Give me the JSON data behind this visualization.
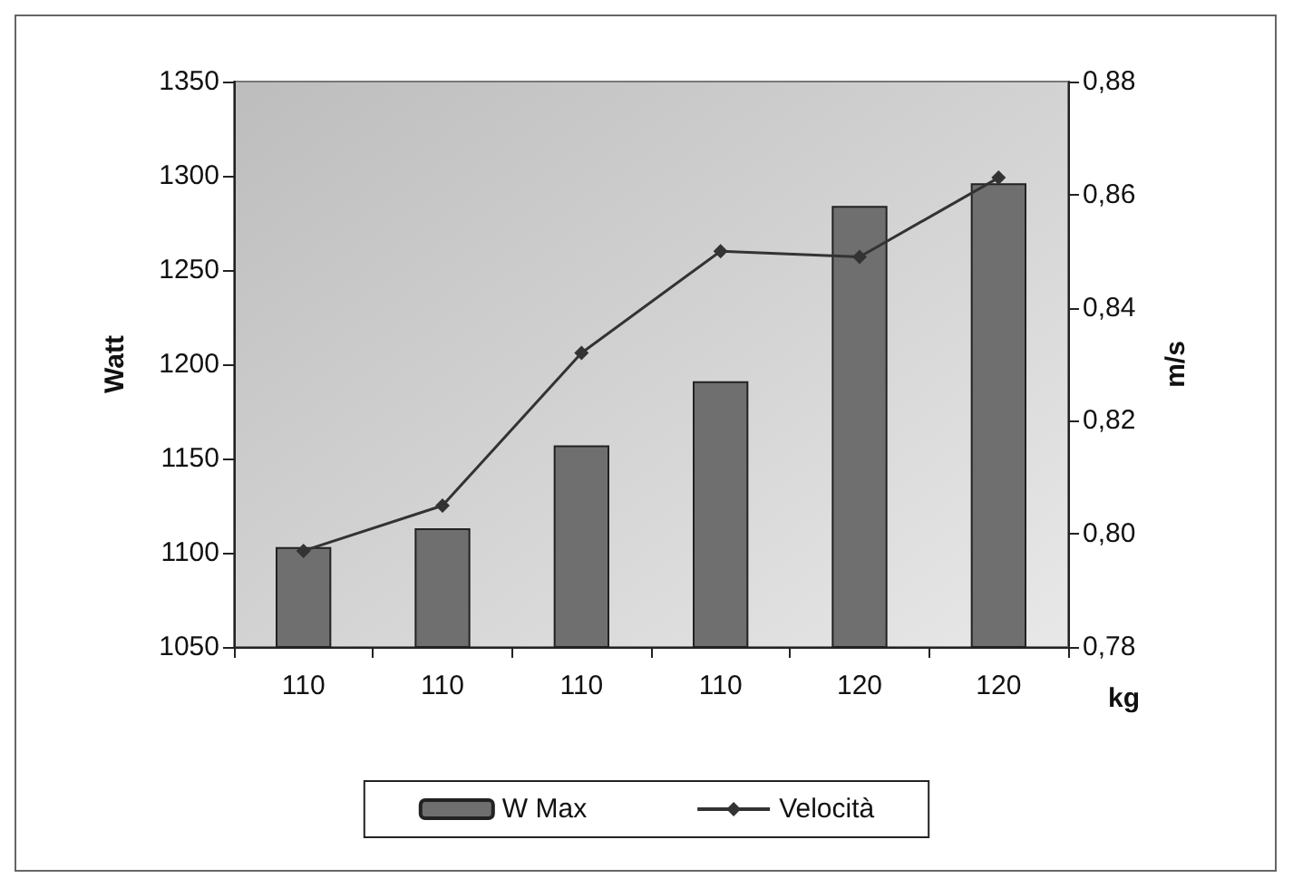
{
  "chart_data": {
    "type": "bar",
    "xlabel": "kg",
    "ylabel": "Watt",
    "y2label": "m/s",
    "categories": [
      "110",
      "110",
      "110",
      "110",
      "120",
      "120"
    ],
    "series": [
      {
        "name": "W Max",
        "color": "#6f6f6f",
        "values": [
          1103,
          1113,
          1157,
          1191,
          1284,
          1296
        ]
      },
      {
        "name": "Velocità",
        "type": "line",
        "axis": "y2",
        "color": "#333333",
        "marker": "diamond",
        "values": [
          0.797,
          0.805,
          0.832,
          0.85,
          0.849,
          0.863
        ]
      }
    ],
    "ylim": [
      1050,
      1350
    ],
    "yticks": [
      1050,
      1100,
      1150,
      1200,
      1250,
      1300,
      1350
    ],
    "y2lim": [
      0.78,
      0.88
    ],
    "y2ticks": [
      {
        "value": 0.78,
        "label": "0,78"
      },
      {
        "value": 0.8,
        "label": "0,80"
      },
      {
        "value": 0.82,
        "label": "0,82"
      },
      {
        "value": 0.84,
        "label": "0,84"
      },
      {
        "value": 0.86,
        "label": "0,86"
      },
      {
        "value": 0.88,
        "label": "0,88"
      }
    ],
    "grid": false,
    "legend": "bottom"
  }
}
